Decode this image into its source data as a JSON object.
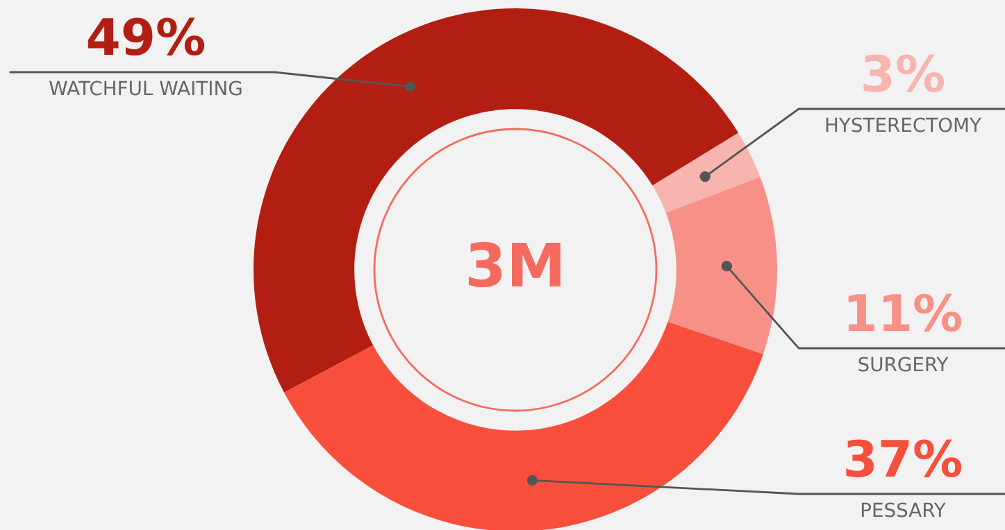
{
  "chart_data": {
    "type": "donut",
    "categories": [
      "WATCHFUL WAITING",
      "HYSTERECTOMY",
      "SURGERY",
      "PESSARY"
    ],
    "values": [
      49,
      3,
      11,
      37
    ],
    "colors": [
      "#b31e13",
      "#f8b4ae",
      "#f79187",
      "#f84f3d"
    ],
    "value_labels": [
      "49%",
      "3%",
      "11%",
      "37%"
    ],
    "annotations": [
      "3M"
    ],
    "legend": false
  }
}
